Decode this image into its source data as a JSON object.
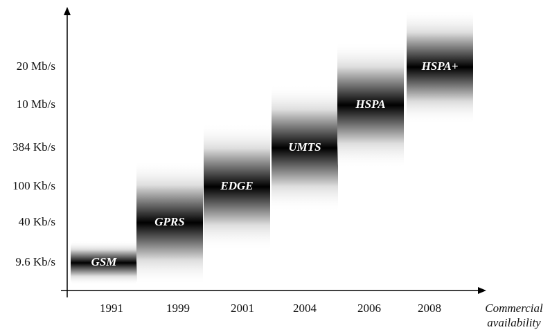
{
  "x_axis": {
    "labels": [
      "1991",
      "1999",
      "2001",
      "2004",
      "2006",
      "2008"
    ],
    "title": [
      "Commercial",
      "availability"
    ]
  },
  "y_axis": {
    "labels": [
      "9.6 Kb/s",
      "40 Kb/s",
      "100 Kb/s",
      "384 Kb/s",
      "10 Mb/s",
      "20 Mb/s"
    ]
  },
  "blocks": [
    "GSM",
    "GPRS",
    "EDGE",
    "UMTS",
    "HSPA",
    "HSPA+"
  ]
}
